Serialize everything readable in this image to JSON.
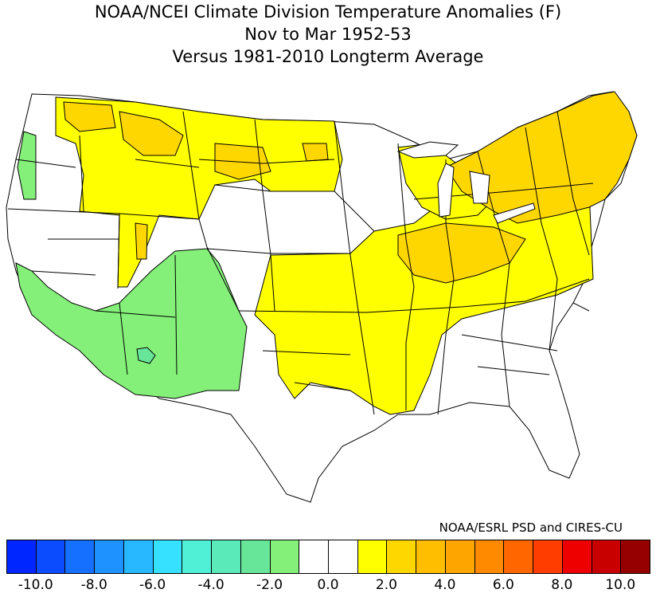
{
  "title": {
    "line1": "NOAA/NCEI Climate Division Temperature Anomalies (F)",
    "line2": "Nov to Mar 1952-53",
    "line3": "Versus 1981-2010 Longterm Average"
  },
  "credit": "NOAA/ESRL PSD and CIRES-CU",
  "colorbar": {
    "colors": [
      "#0026ff",
      "#0b4cff",
      "#1670ff",
      "#1e93ff",
      "#28b8ff",
      "#36e1ff",
      "#4ff0d6",
      "#5ae9b8",
      "#67e69a",
      "#84f07a",
      "#ffffff",
      "#ffffff",
      "#ffff00",
      "#ffd700",
      "#ffbf00",
      "#ffa500",
      "#ff8a00",
      "#ff6600",
      "#ff3d00",
      "#ee0000",
      "#c80000",
      "#960000"
    ],
    "tick_labels": [
      "-10.0",
      "-8.0",
      "-6.0",
      "-4.0",
      "-2.0",
      "0.0",
      "2.0",
      "4.0",
      "6.0",
      "8.0",
      "10.0"
    ]
  },
  "legend_regions": [
    {
      "name": "warm-yellow",
      "color": "#ffff00",
      "range": "0.5 to 2.0"
    },
    {
      "name": "warm-gold",
      "color": "#ffd700",
      "range": "2.0 to 3.0"
    },
    {
      "name": "near-normal",
      "color": "#ffffff",
      "range": "-1.0 to 1.0"
    },
    {
      "name": "cool-green",
      "color": "#84f07a",
      "range": "-2.0 to -1.0"
    },
    {
      "name": "cool-teal",
      "color": "#67e69a",
      "range": "-3.0 to -2.0"
    }
  ]
}
